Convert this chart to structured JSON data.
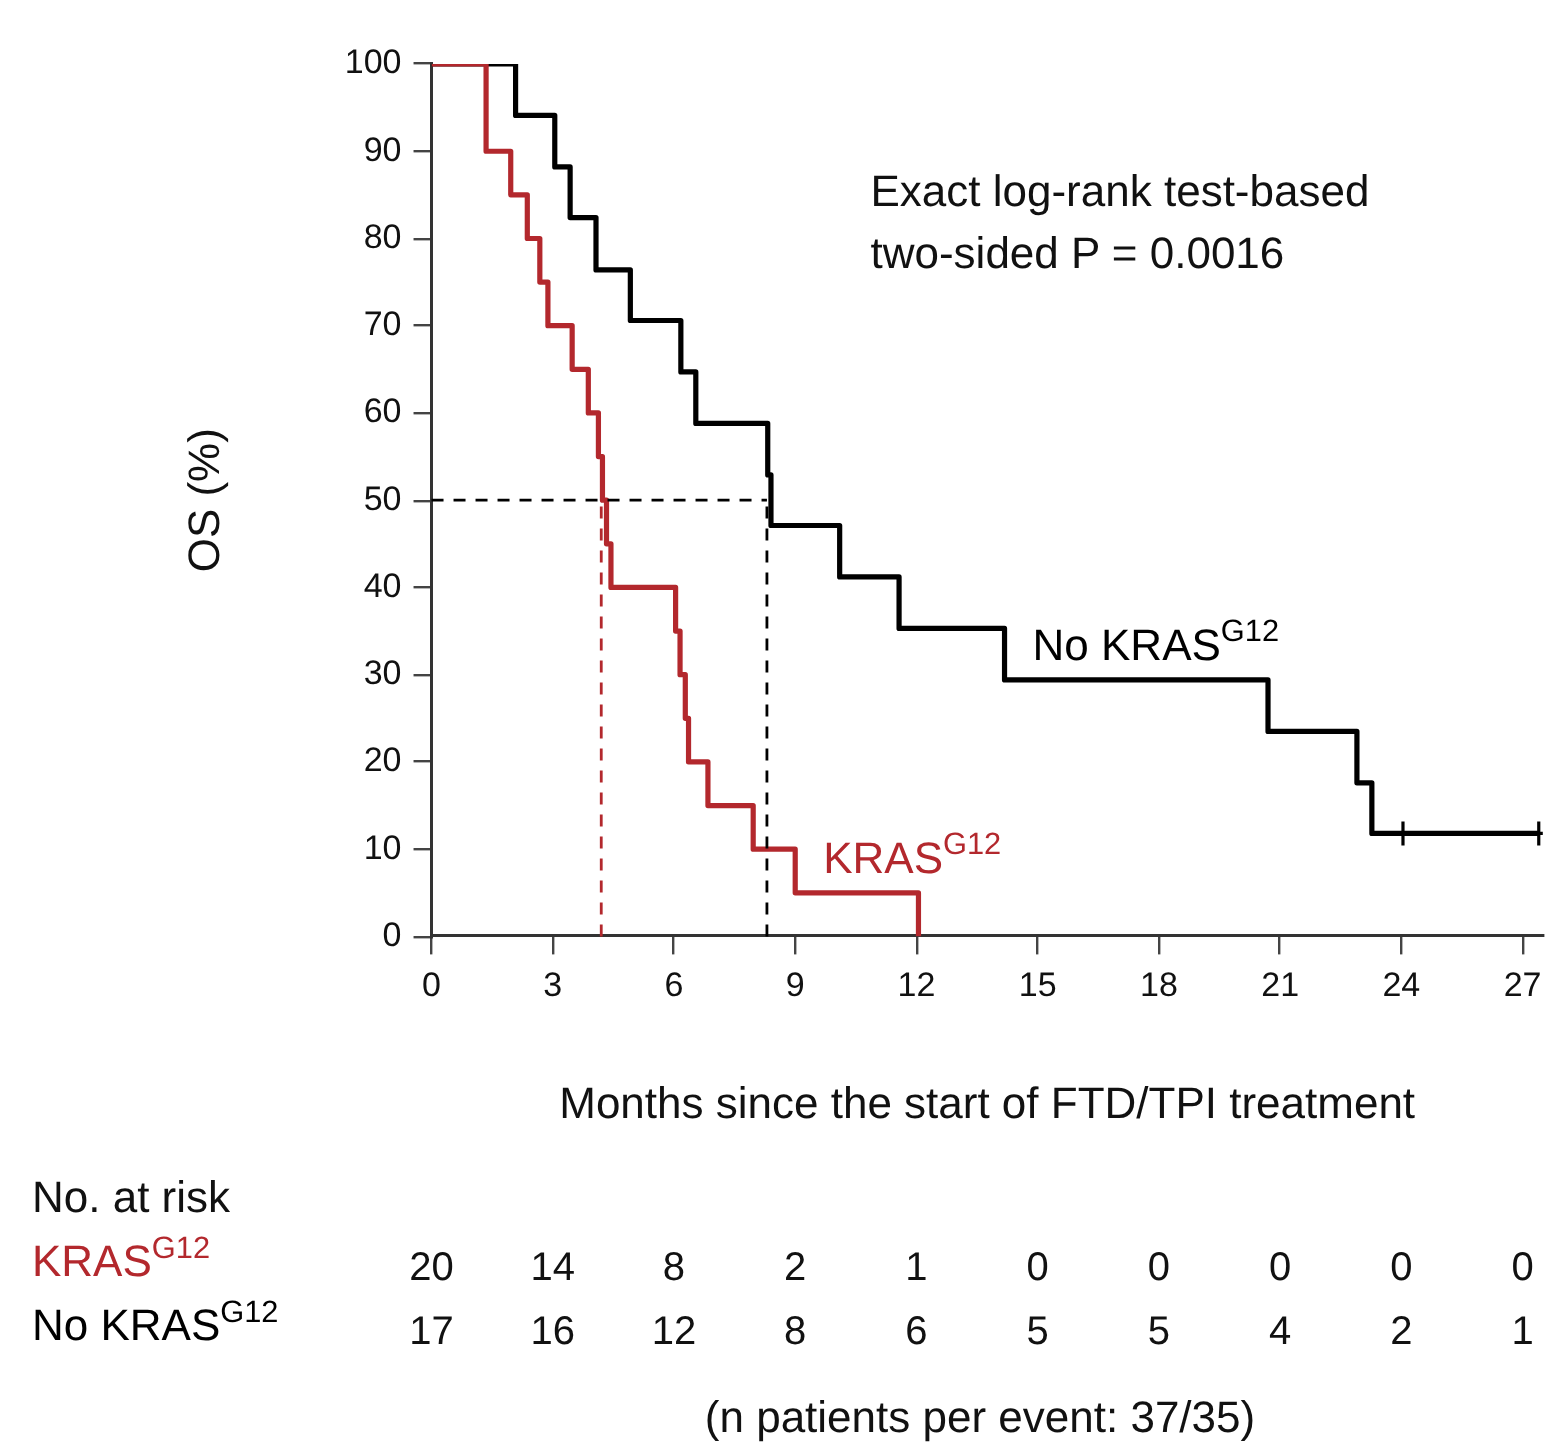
{
  "chart_data": {
    "type": "step",
    "xlabel": "Months since the start of FTD/TPI treatment",
    "ylabel": "OS (%)",
    "xlim": [
      0,
      27.5
    ],
    "xticks": [
      0,
      3,
      6,
      9,
      12,
      15,
      18,
      21,
      24,
      27
    ],
    "ylim": [
      0,
      100
    ],
    "yticks": [
      0,
      10,
      20,
      30,
      40,
      50,
      60,
      70,
      80,
      90,
      100
    ],
    "grid": false,
    "legend": false,
    "series": [
      {
        "name": "KRAS$^{G12}$",
        "color": "#b3282d",
        "x": [
          0,
          1.35,
          1.96,
          2.37,
          2.68,
          2.88,
          3.48,
          3.88,
          4.13,
          4.23,
          4.33,
          4.44,
          6.04,
          6.15,
          6.28,
          6.36,
          6.84,
          7.96,
          9.0,
          12.05
        ],
        "values": [
          100,
          90,
          85,
          80,
          75,
          70,
          65,
          60,
          55,
          50,
          45,
          40,
          35,
          30,
          25,
          20,
          15,
          10,
          5,
          0
        ]
      },
      {
        "name": "No KRAS$^{G12}$",
        "color": "#000000",
        "x": [
          0,
          2.08,
          3.05,
          3.43,
          4.07,
          4.92,
          6.17,
          6.54,
          8.32,
          8.4,
          10.1,
          11.57,
          14.18,
          20.7,
          22.9,
          23.27,
          27.4
        ],
        "values": [
          100,
          94.1,
          88.2,
          82.4,
          76.4,
          70.6,
          64.7,
          58.8,
          52.9,
          47.1,
          41.2,
          35.3,
          29.4,
          23.5,
          17.6,
          11.8,
          11.8
        ]
      },
      {
        "color": "#000000",
        "type": "scatter",
        "marker": "cross",
        "x": [
          24.04,
          27.4
        ],
        "values": [
          11.8,
          11.8
        ]
      }
    ],
    "ref_lines": [
      {
        "axis": "y",
        "value": 50,
        "color": "#000000",
        "line_style": "dashed"
      },
      {
        "axis": "x",
        "value": 4.2,
        "color": "#b3282d",
        "line_style": "dashed"
      },
      {
        "axis": "x",
        "value": 8.3,
        "color": "#000000",
        "line_style": "dashed"
      }
    ],
    "annotations": [
      "Exact log-rank test-based two-sided P = 0.0016",
      "No. at risk",
      "20 14 8 2 1 0 0 0 0 0",
      "17 16 12 8 6 5 5 4 2 1",
      "(n patients per event: 37/35)"
    ]
  }
}
